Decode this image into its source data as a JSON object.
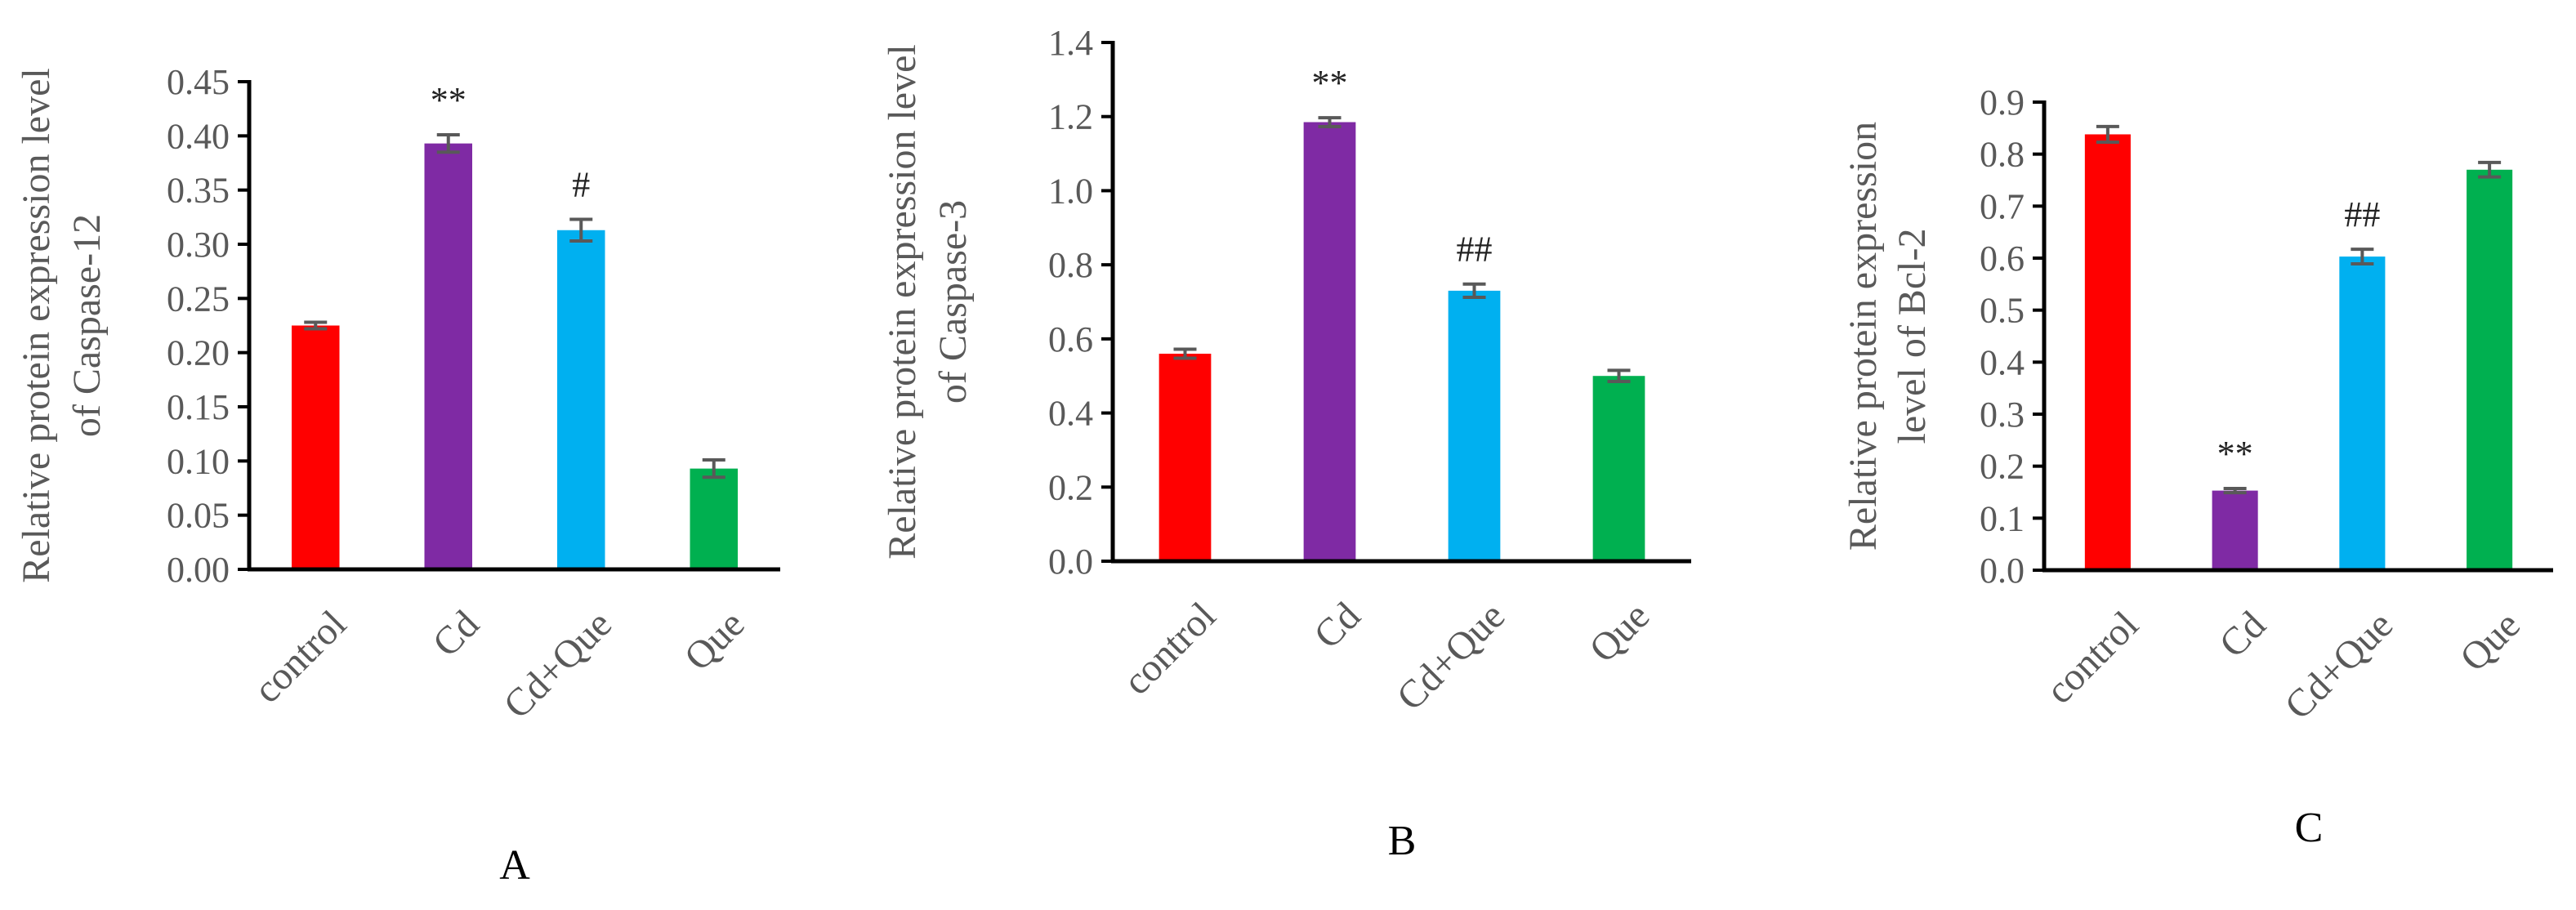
{
  "chart_data": [
    {
      "type": "bar",
      "panel_label": "A",
      "categories": [
        "control",
        "Cd",
        "Cd+Que",
        "Que"
      ],
      "values": [
        0.225,
        0.393,
        0.313,
        0.093
      ],
      "errors": [
        0.003,
        0.008,
        0.01,
        0.008
      ],
      "significance": [
        "",
        "**",
        "#",
        ""
      ],
      "colors": [
        "#ff0000",
        "#7f2aa4",
        "#00b0f0",
        "#00b050"
      ],
      "ylabel_lines": [
        "Relative protein expression  level",
        "of Caspase-12"
      ],
      "ylim": [
        0,
        0.45
      ],
      "yticks": [
        "0.00",
        "0.05",
        "0.10",
        "0.15",
        "0.20",
        "0.25",
        "0.30",
        "0.35",
        "0.40",
        "0.45"
      ],
      "grid": false
    },
    {
      "type": "bar",
      "panel_label": "B",
      "categories": [
        "control",
        "Cd",
        "Cd+Que",
        "Que"
      ],
      "values": [
        0.56,
        1.185,
        0.73,
        0.5
      ],
      "errors": [
        0.012,
        0.012,
        0.018,
        0.015
      ],
      "significance": [
        "",
        "**",
        "##",
        ""
      ],
      "colors": [
        "#ff0000",
        "#7f2aa4",
        "#00b0f0",
        "#00b050"
      ],
      "ylabel_lines": [
        "Relative protein expression  level",
        "of Caspase-3"
      ],
      "ylim": [
        0,
        1.4
      ],
      "yticks": [
        "0.0",
        "0.2",
        "0.4",
        "0.6",
        "0.8",
        "1.0",
        "1.2",
        "1.4"
      ],
      "grid": false
    },
    {
      "type": "bar",
      "panel_label": "C",
      "categories": [
        "control",
        "Cd",
        "Cd+Que",
        "Que"
      ],
      "values": [
        0.838,
        0.153,
        0.603,
        0.77
      ],
      "errors": [
        0.015,
        0.004,
        0.014,
        0.014
      ],
      "significance": [
        "",
        "**",
        "##",
        ""
      ],
      "colors": [
        "#ff0000",
        "#7f2aa4",
        "#00b0f0",
        "#00b050"
      ],
      "ylabel_lines": [
        "Relative protein expression",
        "level of Bcl-2"
      ],
      "ylim": [
        0,
        0.9
      ],
      "yticks": [
        "0.0",
        "0.1",
        "0.2",
        "0.3",
        "0.4",
        "0.5",
        "0.6",
        "0.7",
        "0.8",
        "0.9"
      ],
      "grid": false
    }
  ]
}
